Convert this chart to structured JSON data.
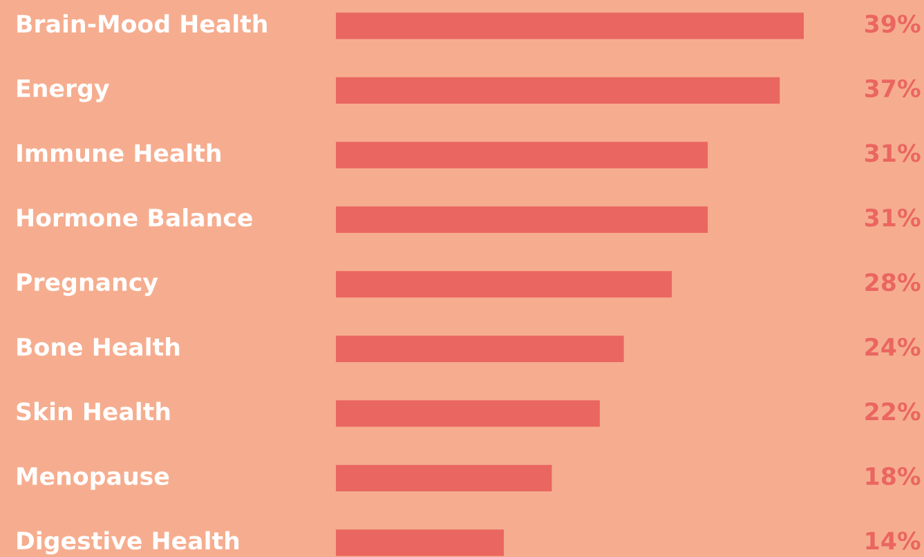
{
  "chart_data": {
    "type": "bar",
    "orientation": "horizontal",
    "categories": [
      "Brain-Mood Health",
      "Energy",
      "Immune Health",
      "Hormone Balance",
      "Pregnancy",
      "Bone Health",
      "Skin Health",
      "Menopause",
      "Digestive Health"
    ],
    "values": [
      39,
      37,
      31,
      31,
      28,
      24,
      22,
      18,
      14
    ],
    "value_labels": [
      "39%",
      "37%",
      "31%",
      "31%",
      "28%",
      "24%",
      "22%",
      "18%",
      "14%"
    ],
    "color": "#ea6660"
  }
}
